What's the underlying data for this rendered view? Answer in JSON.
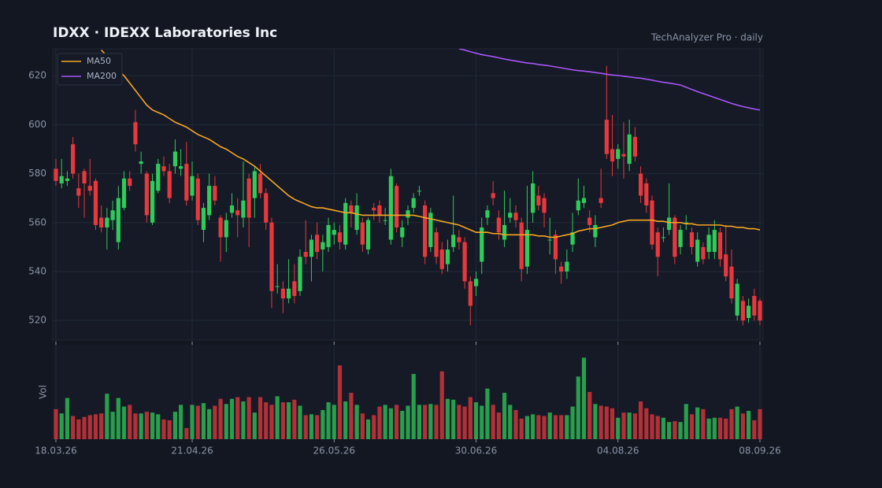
{
  "chart_data": {
    "type": "candlestick",
    "title": "IDXX  ·  IDEXX Laboratories Inc",
    "subtitle": "TechAnalyzer Pro · daily",
    "categories": [
      "18.03.26",
      null,
      null,
      null,
      null,
      null,
      null,
      null,
      null,
      null,
      null,
      null,
      null,
      null,
      null,
      null,
      null,
      null,
      null,
      null,
      null,
      null,
      null,
      null,
      "21.04.26",
      null,
      null,
      null,
      null,
      null,
      null,
      null,
      null,
      null,
      null,
      null,
      null,
      null,
      null,
      null,
      null,
      null,
      null,
      null,
      null,
      null,
      null,
      null,
      null,
      "26.05.26",
      null,
      null,
      null,
      null,
      null,
      null,
      null,
      null,
      null,
      null,
      null,
      null,
      null,
      null,
      null,
      null,
      null,
      null,
      null,
      null,
      null,
      null,
      null,
      null,
      "30.06.26",
      null,
      null,
      null,
      null,
      null,
      null,
      null,
      null,
      null,
      null,
      null,
      null,
      null,
      null,
      null,
      null,
      null,
      null,
      null,
      null,
      null,
      null,
      null,
      null,
      "04.08.26",
      null,
      null,
      null,
      null,
      null,
      null,
      null,
      null,
      null,
      null,
      null,
      null,
      null,
      null,
      null,
      null,
      null,
      null,
      null,
      null,
      null,
      null,
      null,
      null,
      "08.09.26"
    ],
    "open": [
      582,
      576,
      577,
      592,
      574,
      581,
      575,
      577,
      562,
      558,
      561,
      552,
      566,
      578,
      601,
      584,
      580,
      560,
      573,
      583,
      581,
      583,
      582,
      584,
      571,
      578,
      557,
      563,
      575,
      562,
      554,
      564,
      565,
      562,
      578,
      570,
      580,
      572,
      560,
      534,
      533,
      529,
      536,
      532,
      548,
      546,
      555,
      549,
      550,
      555,
      556,
      551,
      567,
      557,
      560,
      549,
      566,
      567,
      561,
      553,
      575,
      554,
      562,
      566,
      573,
      567,
      550,
      556,
      549,
      543,
      550,
      554,
      552,
      536,
      534,
      544,
      562,
      572,
      562,
      553,
      562,
      564,
      560,
      542,
      564,
      571,
      570,
      553,
      555,
      542,
      540,
      551,
      565,
      568,
      562,
      554,
      570,
      602,
      590,
      586,
      588,
      584,
      595,
      580,
      576,
      569,
      556,
      554,
      557,
      562,
      550,
      560,
      556,
      544,
      550,
      548,
      548,
      556,
      547,
      542,
      522,
      528,
      521,
      530,
      528
    ],
    "high": [
      586,
      586,
      581,
      595,
      580,
      582,
      586,
      578,
      567,
      566,
      569,
      575,
      581,
      581,
      606,
      589,
      581,
      580,
      586,
      587,
      584,
      594,
      590,
      593,
      585,
      580,
      568,
      580,
      579,
      563,
      564,
      572,
      570,
      585,
      580,
      583,
      584,
      574,
      562,
      543,
      536,
      545,
      543,
      549,
      561,
      555,
      560,
      555,
      562,
      560,
      559,
      570,
      569,
      572,
      562,
      562,
      568,
      569,
      566,
      582,
      576,
      561,
      567,
      572,
      575,
      569,
      566,
      558,
      552,
      553,
      571,
      557,
      554,
      538,
      540,
      562,
      567,
      577,
      565,
      573,
      570,
      567,
      562,
      575,
      581,
      575,
      572,
      562,
      557,
      544,
      549,
      564,
      578,
      575,
      565,
      563,
      582,
      624,
      604,
      592,
      601,
      602,
      599,
      583,
      578,
      571,
      558,
      558,
      576,
      563,
      559,
      563,
      558,
      556,
      552,
      558,
      561,
      558,
      559,
      549,
      537,
      530,
      529,
      533,
      529
    ],
    "low": [
      575,
      574,
      575,
      578,
      566,
      562,
      571,
      557,
      556,
      549,
      557,
      549,
      565,
      573,
      589,
      580,
      560,
      559,
      572,
      579,
      568,
      580,
      579,
      567,
      569,
      559,
      552,
      561,
      567,
      544,
      548,
      562,
      554,
      558,
      550,
      562,
      570,
      557,
      525,
      531,
      523,
      527,
      527,
      530,
      543,
      536,
      545,
      540,
      548,
      551,
      549,
      549,
      558,
      555,
      548,
      547,
      561,
      560,
      559,
      551,
      556,
      550,
      559,
      564,
      571,
      543,
      548,
      543,
      539,
      540,
      548,
      549,
      533,
      518,
      530,
      539,
      559,
      567,
      553,
      550,
      560,
      558,
      536,
      539,
      560,
      565,
      558,
      547,
      539,
      535,
      537,
      548,
      563,
      566,
      556,
      550,
      566,
      586,
      579,
      582,
      578,
      581,
      585,
      568,
      564,
      549,
      538,
      552,
      555,
      543,
      547,
      557,
      547,
      542,
      543,
      545,
      545,
      542,
      536,
      527,
      520,
      518,
      519,
      520,
      518
    ],
    "close": [
      577,
      579,
      578,
      580,
      571,
      576,
      573,
      559,
      558,
      562,
      565,
      570,
      578,
      575,
      592,
      585,
      563,
      577,
      584,
      581,
      570,
      589,
      583,
      569,
      579,
      561,
      566,
      575,
      569,
      554,
      561,
      567,
      563,
      569,
      562,
      581,
      572,
      560,
      532,
      534,
      529,
      533,
      530,
      546,
      546,
      553,
      548,
      552,
      559,
      557,
      552,
      568,
      564,
      567,
      551,
      561,
      565,
      563,
      561,
      579,
      558,
      558,
      565,
      570,
      573,
      546,
      564,
      546,
      541,
      549,
      555,
      552,
      536,
      526,
      537,
      558,
      565,
      570,
      556,
      559,
      564,
      561,
      541,
      557,
      576,
      567,
      564,
      553,
      545,
      540,
      544,
      556,
      569,
      570,
      559,
      559,
      568,
      588,
      585,
      590,
      587,
      596,
      587,
      571,
      567,
      551,
      546,
      554,
      562,
      546,
      557,
      560,
      550,
      553,
      545,
      555,
      557,
      545,
      538,
      529,
      535,
      520,
      526,
      522,
      520
    ],
    "up_color": "#2ecc5a",
    "down_color": "#e8383d",
    "series": [
      {
        "name": "MA50",
        "color": "#f5a623",
        "values": [
          null,
          null,
          null,
          null,
          null,
          null,
          null,
          null,
          630.5,
          628,
          625,
          622,
          620,
          617,
          614,
          611,
          608,
          606,
          605,
          604,
          602.5,
          601,
          600,
          599,
          597.5,
          596,
          595,
          594,
          592.5,
          591,
          590,
          588.5,
          587,
          586,
          584.5,
          583,
          581,
          579,
          577,
          575,
          573,
          571,
          569.5,
          568.5,
          567.5,
          566.5,
          566,
          566,
          565.5,
          565,
          564.5,
          564,
          564,
          563.5,
          563,
          563,
          563,
          563,
          563,
          563,
          563,
          563,
          563,
          563,
          562.5,
          562,
          561.5,
          561,
          560.5,
          560,
          559.5,
          559,
          558,
          557,
          556,
          556,
          556,
          555.5,
          555.5,
          555,
          555,
          555,
          555,
          555,
          555,
          554.5,
          554.5,
          554,
          554,
          554.5,
          555,
          555.5,
          556.5,
          557,
          557.5,
          557.5,
          558,
          558.5,
          559,
          560,
          560.5,
          561,
          561,
          561,
          561,
          561,
          560.5,
          560.5,
          560,
          560,
          560,
          559.5,
          559.5,
          559,
          559,
          559,
          559,
          559,
          558.5,
          558.5,
          558,
          558,
          557.5,
          557.5,
          557
        ]
      },
      {
        "name": "MA200",
        "color": "#a855f7",
        "values": [
          null,
          null,
          null,
          null,
          null,
          null,
          null,
          null,
          null,
          null,
          null,
          null,
          null,
          null,
          null,
          null,
          null,
          null,
          null,
          null,
          null,
          null,
          null,
          null,
          null,
          null,
          null,
          null,
          null,
          null,
          null,
          null,
          null,
          null,
          null,
          null,
          null,
          null,
          null,
          null,
          null,
          null,
          null,
          null,
          null,
          null,
          null,
          null,
          null,
          null,
          null,
          null,
          null,
          null,
          null,
          null,
          null,
          null,
          null,
          null,
          null,
          null,
          null,
          null,
          null,
          null,
          null,
          null,
          null,
          null,
          null,
          631,
          630.5,
          629.8,
          629.2,
          628.6,
          628.2,
          627.8,
          627.3,
          626.8,
          626.4,
          626,
          625.6,
          625.2,
          625,
          624.6,
          624.3,
          624,
          623.6,
          623.2,
          622.8,
          622.4,
          622.1,
          621.9,
          621.6,
          621.3,
          621,
          620.6,
          620.3,
          620.1,
          619.8,
          619.5,
          619.2,
          619,
          618.6,
          618.2,
          617.7,
          617.3,
          617,
          616.6,
          616.2,
          615.3,
          614.4,
          613.5,
          612.7,
          611.9,
          611.1,
          610.3,
          609.5,
          608.7,
          608,
          607.4,
          606.9,
          606.4,
          606
        ]
      }
    ],
    "volume": {
      "label": "Vol",
      "ylim": [
        0,
        110
      ],
      "values": [
        35,
        30,
        48,
        27,
        23,
        26,
        28,
        29,
        30,
        53,
        32,
        48,
        38,
        40,
        30,
        30,
        32,
        31,
        29,
        23,
        22,
        32,
        40,
        13,
        40,
        39,
        42,
        35,
        39,
        47,
        41,
        47,
        49,
        44,
        49,
        31,
        49,
        43,
        40,
        50,
        43,
        43,
        46,
        39,
        28,
        29,
        28,
        34,
        43,
        40,
        86,
        44,
        54,
        40,
        30,
        23,
        28,
        38,
        40,
        36,
        40,
        33,
        39,
        76,
        40,
        40,
        41,
        40,
        79,
        47,
        46,
        40,
        38,
        49,
        43,
        39,
        59,
        40,
        31,
        54,
        40,
        34,
        24,
        27,
        29,
        28,
        27,
        31,
        28,
        28,
        28,
        38,
        73,
        95,
        55,
        41,
        39,
        38,
        36,
        25,
        31,
        31,
        30,
        44,
        36,
        29,
        27,
        25,
        20,
        21,
        20,
        41,
        29,
        37,
        35,
        24,
        25,
        25,
        24,
        35,
        38,
        30,
        33,
        22,
        35
      ]
    },
    "ylim": [
      512,
      631
    ],
    "yticks": [
      520,
      540,
      560,
      580,
      600,
      620
    ],
    "grid": true,
    "legend": "upper left"
  }
}
